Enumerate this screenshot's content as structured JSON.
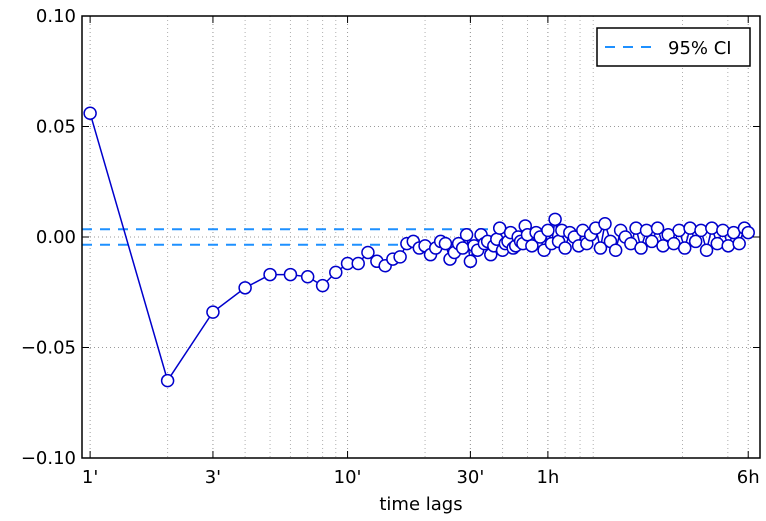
{
  "chart_data": {
    "type": "line",
    "xlabel": "time lags",
    "ylabel": "",
    "x_scale": "log",
    "x_unit": "minutes",
    "xlim": [
      0.93,
      400
    ],
    "ylim": [
      -0.1,
      0.1
    ],
    "x_ticks": [
      {
        "value": 1,
        "label": "1'"
      },
      {
        "value": 3,
        "label": "3'"
      },
      {
        "value": 10,
        "label": "10'"
      },
      {
        "value": 30,
        "label": "30'"
      },
      {
        "value": 60,
        "label": "1h"
      },
      {
        "value": 360,
        "label": "6h"
      }
    ],
    "y_ticks": [
      {
        "value": 0.1,
        "label": "0.10"
      },
      {
        "value": 0.05,
        "label": "0.05"
      },
      {
        "value": 0.0,
        "label": "0.00"
      },
      {
        "value": -0.05,
        "label": "−0.05"
      },
      {
        "value": -0.1,
        "label": "−0.10"
      }
    ],
    "grid": "dotted",
    "minor_x_grid": true,
    "legend_position": "top-right",
    "series": [
      {
        "name": "",
        "color": "#0000cc",
        "marker": "open-circle",
        "x": [
          1,
          2,
          3,
          4,
          5,
          6,
          7,
          8,
          9,
          10,
          11,
          12,
          13,
          14,
          15,
          16,
          17,
          18,
          19,
          20,
          21,
          22,
          23,
          24,
          25,
          26,
          27,
          28,
          29,
          30,
          31,
          32,
          33,
          34,
          35,
          36,
          37,
          38,
          39,
          40,
          41,
          42,
          43,
          44,
          45,
          46,
          47,
          48,
          49,
          50,
          52,
          54,
          56,
          58,
          60,
          62,
          64,
          66,
          68,
          70,
          73,
          76,
          79,
          82,
          85,
          88,
          92,
          96,
          100,
          105,
          110,
          115,
          120,
          126,
          132,
          138,
          145,
          152,
          160,
          168,
          176,
          185,
          194,
          204,
          214,
          225,
          236,
          248,
          260,
          273,
          287,
          301,
          316,
          332,
          348,
          360
        ],
        "values": [
          0.056,
          -0.065,
          -0.034,
          -0.023,
          -0.017,
          -0.017,
          -0.018,
          -0.022,
          -0.016,
          -0.012,
          -0.012,
          -0.007,
          -0.011,
          -0.013,
          -0.01,
          -0.009,
          -0.003,
          -0.002,
          -0.005,
          -0.004,
          -0.008,
          -0.005,
          -0.002,
          -0.003,
          -0.01,
          -0.007,
          -0.003,
          -0.005,
          0.001,
          -0.011,
          -0.004,
          -0.006,
          0.001,
          -0.003,
          -0.002,
          -0.008,
          -0.004,
          -0.001,
          0.004,
          -0.006,
          -0.003,
          -0.002,
          0.002,
          -0.005,
          -0.004,
          0.0,
          -0.002,
          -0.003,
          0.005,
          0.001,
          -0.004,
          0.002,
          0.0,
          -0.006,
          0.003,
          -0.003,
          0.008,
          -0.002,
          0.003,
          -0.005,
          0.002,
          0.0,
          -0.004,
          0.003,
          -0.003,
          0.001,
          0.004,
          -0.005,
          0.006,
          -0.002,
          -0.006,
          0.003,
          0.0,
          -0.003,
          0.004,
          -0.005,
          0.003,
          -0.002,
          0.004,
          -0.004,
          0.001,
          -0.003,
          0.003,
          -0.005,
          0.004,
          -0.002,
          0.003,
          -0.006,
          0.004,
          -0.003,
          0.003,
          -0.004,
          0.002,
          -0.003,
          0.004,
          0.002
        ]
      },
      {
        "name": "95% CI",
        "color": "#1e90ff",
        "style": "dashed",
        "upper": 0.0035,
        "lower": -0.0035,
        "x_end": 36
      }
    ]
  }
}
